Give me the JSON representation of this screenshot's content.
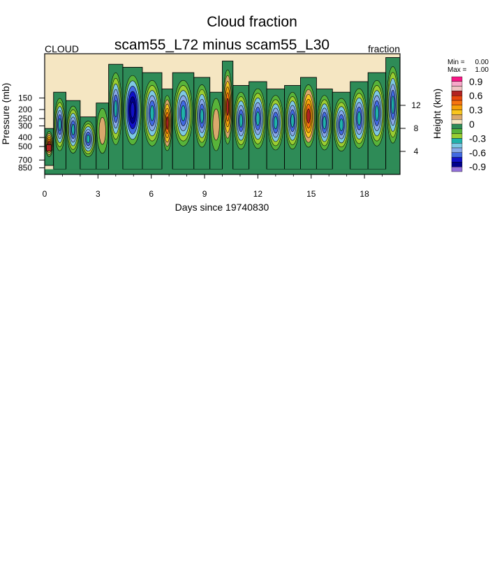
{
  "chart_data": {
    "type": "heatmap",
    "title": "Cloud fraction",
    "subtitle": "scam55_L72 minus scam55_L30",
    "left_label": "CLOUD",
    "right_label": "fraction",
    "xlabel": "Days since 19740830",
    "ylabel": "Pressure (mb)",
    "y2label": "Height (km)",
    "xlim": [
      0,
      20
    ],
    "ylim": [
      1000,
      50
    ],
    "y_scale": "log-pressure",
    "x_ticks": [
      0,
      3,
      6,
      9,
      12,
      15,
      18
    ],
    "x_tick_labels": [
      "0",
      "3",
      "6",
      "9",
      "12",
      "15",
      "18"
    ],
    "y_ticks": [
      150,
      200,
      250,
      300,
      400,
      500,
      700,
      850
    ],
    "y_tick_labels": [
      "150",
      "200",
      "250",
      "300",
      "400",
      "500",
      "700",
      "850"
    ],
    "y2_ticks": [
      12,
      8,
      4
    ],
    "y2_tick_labels": [
      "12",
      "8",
      "4"
    ],
    "stats": {
      "min_label": "Min =",
      "min_value": "0.00",
      "max_label": "Max =",
      "max_value": "1.00"
    },
    "colorbar": {
      "levels": [
        -0.9,
        -0.8,
        -0.7,
        -0.6,
        -0.5,
        -0.4,
        -0.3,
        -0.2,
        -0.1,
        0,
        0.1,
        0.2,
        0.3,
        0.4,
        0.5,
        0.6,
        0.7,
        0.8,
        0.9
      ],
      "tick_labels": [
        "0.9",
        "0.6",
        "0.3",
        "0",
        "-0.3",
        "-0.6",
        "-0.9"
      ],
      "colors": [
        "#f71886",
        "#f7a8c9",
        "#efc3c3",
        "#b22222",
        "#e8470e",
        "#f7740f",
        "#f5a10a",
        "#f9c61e",
        "#d9a86c",
        "#f5e6c2",
        "#2e8b57",
        "#58b33a",
        "#9acd32",
        "#20b2aa",
        "#7ec8e3",
        "#87a8e8",
        "#4169e1",
        "#1010c8",
        "#00008b",
        "#9370db"
      ]
    },
    "columns": [
      {
        "x0": 0.0,
        "x1": 0.5,
        "top": 320,
        "bottom": 800,
        "anomaly": "pos",
        "at": [
          0.55,
          0.85
        ]
      },
      {
        "x0": 0.5,
        "x1": 1.2,
        "top": 130,
        "bottom": 880,
        "anomaly": "neg"
      },
      {
        "x0": 1.2,
        "x1": 2.0,
        "top": 160,
        "bottom": 890,
        "anomaly": "neg"
      },
      {
        "x0": 2.0,
        "x1": 2.9,
        "top": 240,
        "bottom": 880,
        "anomaly": "neg"
      },
      {
        "x0": 2.9,
        "x1": 3.6,
        "top": 170,
        "bottom": 880,
        "anomaly": "none"
      },
      {
        "x0": 3.6,
        "x1": 4.4,
        "top": 65,
        "bottom": 900,
        "anomaly": "neg"
      },
      {
        "x0": 4.4,
        "x1": 5.5,
        "top": 70,
        "bottom": 880,
        "anomaly": "strongneg"
      },
      {
        "x0": 5.5,
        "x1": 6.6,
        "top": 80,
        "bottom": 880,
        "anomaly": "neg"
      },
      {
        "x0": 6.6,
        "x1": 7.2,
        "top": 120,
        "bottom": 900,
        "anomaly": "pos"
      },
      {
        "x0": 7.2,
        "x1": 8.4,
        "top": 80,
        "bottom": 880,
        "anomaly": "neg"
      },
      {
        "x0": 8.4,
        "x1": 9.3,
        "top": 90,
        "bottom": 880,
        "anomaly": "neg"
      },
      {
        "x0": 9.3,
        "x1": 10.0,
        "top": 130,
        "bottom": 880,
        "anomaly": "none"
      },
      {
        "x0": 10.0,
        "x1": 10.6,
        "top": 60,
        "bottom": 900,
        "anomaly": "pos"
      },
      {
        "x0": 10.6,
        "x1": 11.5,
        "top": 110,
        "bottom": 880,
        "anomaly": "neg"
      },
      {
        "x0": 11.5,
        "x1": 12.5,
        "top": 100,
        "bottom": 890,
        "anomaly": "neg"
      },
      {
        "x0": 12.5,
        "x1": 13.5,
        "top": 120,
        "bottom": 880,
        "anomaly": "neg"
      },
      {
        "x0": 13.5,
        "x1": 14.4,
        "top": 110,
        "bottom": 880,
        "anomaly": "neg"
      },
      {
        "x0": 14.4,
        "x1": 15.3,
        "top": 90,
        "bottom": 880,
        "anomaly": "pos"
      },
      {
        "x0": 15.3,
        "x1": 16.2,
        "top": 120,
        "bottom": 880,
        "anomaly": "neg"
      },
      {
        "x0": 16.2,
        "x1": 17.2,
        "top": 130,
        "bottom": 890,
        "anomaly": "neg"
      },
      {
        "x0": 17.2,
        "x1": 18.2,
        "top": 100,
        "bottom": 880,
        "anomaly": "neg"
      },
      {
        "x0": 18.2,
        "x1": 19.2,
        "top": 80,
        "bottom": 880,
        "anomaly": "neg"
      },
      {
        "x0": 19.2,
        "x1": 20.0,
        "top": 55,
        "bottom": 900,
        "anomaly": "neg"
      }
    ]
  }
}
